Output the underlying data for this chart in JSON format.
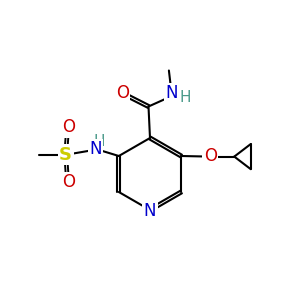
{
  "bg_color": "#ffffff",
  "bond_color": "#000000",
  "atom_colors": {
    "N": "#0000cc",
    "O": "#cc0000",
    "S": "#cccc00",
    "H": "#4a9a8a",
    "C": "#000000"
  },
  "font_size": 10,
  "figsize": [
    3.0,
    3.0
  ],
  "dpi": 100
}
